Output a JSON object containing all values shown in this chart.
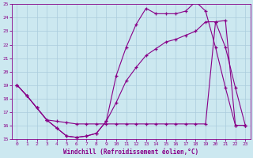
{
  "xlabel": "Windchill (Refroidissement éolien,°C)",
  "bg_color": "#cce8f0",
  "grid_color": "#aaccdd",
  "line_color": "#880088",
  "xlim": [
    -0.5,
    23.5
  ],
  "ylim": [
    15,
    25
  ],
  "xticks": [
    0,
    1,
    2,
    3,
    4,
    5,
    6,
    7,
    8,
    9,
    10,
    11,
    12,
    13,
    14,
    15,
    16,
    17,
    18,
    19,
    20,
    21,
    22,
    23
  ],
  "yticks": [
    15,
    16,
    17,
    18,
    19,
    20,
    21,
    22,
    23,
    24,
    25
  ],
  "line1_x": [
    0,
    1,
    2,
    3,
    4,
    5,
    6,
    7,
    8,
    9,
    10,
    11,
    12,
    13,
    14,
    15,
    16,
    17,
    18,
    19,
    20,
    21,
    22,
    23
  ],
  "line1_y": [
    19.0,
    18.2,
    17.3,
    16.4,
    15.8,
    15.2,
    15.1,
    15.2,
    15.4,
    16.3,
    19.7,
    21.8,
    23.5,
    24.7,
    24.3,
    24.3,
    24.3,
    24.5,
    25.2,
    24.5,
    21.8,
    18.8,
    16.0,
    16.0
  ],
  "line2_x": [
    0,
    1,
    2,
    3,
    4,
    5,
    6,
    7,
    8,
    9,
    10,
    11,
    12,
    13,
    14,
    15,
    16,
    17,
    18,
    19,
    20,
    21,
    22,
    23
  ],
  "line2_y": [
    19.0,
    18.2,
    17.3,
    16.4,
    16.3,
    16.2,
    16.1,
    16.1,
    16.1,
    16.1,
    16.1,
    16.1,
    16.1,
    16.1,
    16.1,
    16.1,
    16.1,
    16.1,
    16.1,
    16.1,
    23.7,
    23.8,
    16.0,
    16.0
  ],
  "line3_x": [
    0,
    1,
    2,
    3,
    4,
    5,
    6,
    7,
    8,
    9,
    10,
    11,
    12,
    13,
    14,
    15,
    16,
    17,
    18,
    19,
    20,
    21,
    22,
    23
  ],
  "line3_y": [
    19.0,
    18.2,
    17.3,
    16.4,
    15.8,
    15.2,
    15.1,
    15.2,
    15.4,
    16.3,
    17.7,
    19.3,
    20.3,
    21.2,
    21.7,
    22.2,
    22.4,
    22.7,
    23.0,
    23.7,
    23.7,
    21.8,
    18.8,
    16.0
  ]
}
